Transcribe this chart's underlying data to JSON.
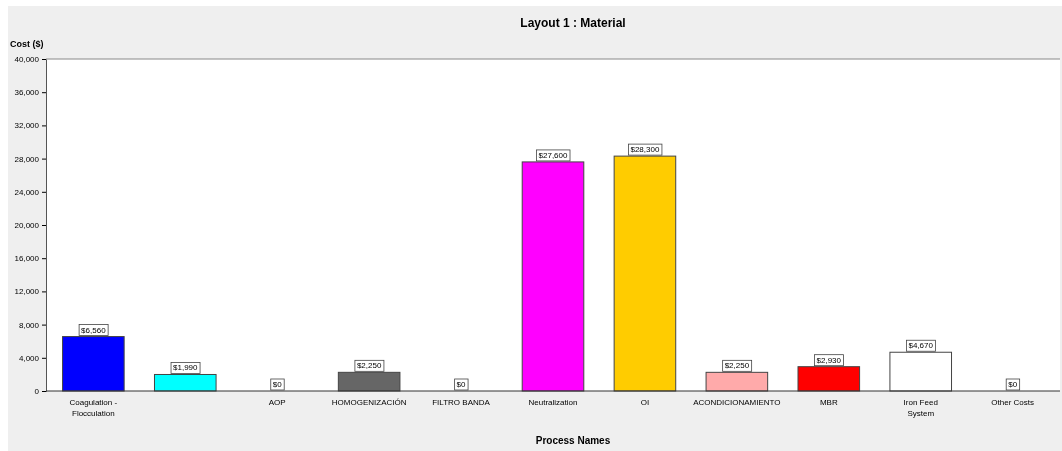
{
  "chart_data": {
    "type": "bar",
    "title": "Layout 1 : Material",
    "xlabel": "Process Names",
    "ylabel": "Cost ($)",
    "categories": [
      "Coagulation - Flocculation",
      null,
      "AOP",
      "HOMOGENIZACIÓN",
      "FILTRO BANDA",
      "Neutralization",
      "OI",
      "ACONDICIONAMIENTO",
      "MBR",
      "Iron Feed System",
      "Other Costs"
    ],
    "values": [
      6560,
      1990,
      0,
      2250,
      0,
      27600,
      28300,
      2250,
      2930,
      4670,
      0
    ],
    "colors": [
      "#0000ff",
      "#00ffff",
      "#808080",
      "#666666",
      "#808080",
      "#ff00ff",
      "#ffcc00",
      "#ffaaaa",
      "#ff0000",
      "#ffffff",
      "#808080"
    ],
    "value_labels": [
      "$6,560",
      "$1,990",
      "$0",
      "$2,250",
      "$0",
      "$27,600",
      "$28,300",
      "$2,250",
      "$2,930",
      "$4,670",
      "$0"
    ],
    "ylim": [
      0,
      40000
    ],
    "yticks": [
      0,
      {
        "value": 4000,
        "label": "4,000"
      },
      {
        "value": 8000,
        "label": "8,000"
      },
      {
        "value": 12000,
        "label": "12,000"
      },
      {
        "value": 16000,
        "label": "16,000"
      },
      {
        "value": 20000,
        "label": "20,000"
      },
      {
        "value": 24000,
        "label": "24,000"
      },
      {
        "value": 28000,
        "label": "28,000"
      },
      {
        "value": 32000,
        "label": "32,000"
      },
      {
        "value": 36000,
        "label": "36,000"
      },
      {
        "value": 40000,
        "label": "40,000"
      }
    ],
    "grid": false
  }
}
